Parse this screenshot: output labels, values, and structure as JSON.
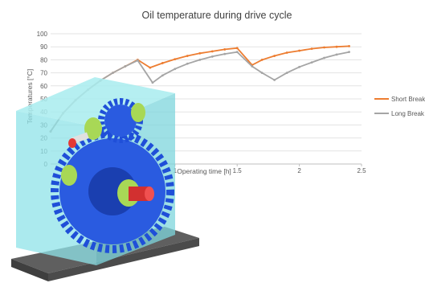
{
  "chart_data": {
    "type": "line",
    "title": "Oil temperature during drive cycle",
    "xlabel": "Operating time [h]",
    "ylabel": "Temperatures [°C]",
    "xlim": [
      0,
      2.5
    ],
    "ylim": [
      0,
      100
    ],
    "xticks": [
      "0.5",
      "1",
      "1.5",
      "2",
      "2.5"
    ],
    "yticks": [
      "0",
      "10",
      "20",
      "30",
      "40",
      "50",
      "60",
      "70",
      "80",
      "90",
      "100"
    ],
    "grid": true,
    "legend_position": "right",
    "series": [
      {
        "name": "Short Break",
        "color": "#ED7D31",
        "x": [
          0.0,
          0.1,
          0.2,
          0.3,
          0.4,
          0.5,
          0.6,
          0.7,
          0.8,
          0.9,
          1.0,
          1.1,
          1.2,
          1.3,
          1.4,
          1.5,
          1.62,
          1.7,
          1.8,
          1.9,
          2.0,
          2.1,
          2.2,
          2.3,
          2.4
        ],
        "y": [
          25,
          39,
          49,
          57,
          64,
          70,
          75,
          80,
          74,
          77.5,
          80.5,
          83,
          85,
          86.5,
          88,
          89,
          76,
          80,
          83,
          85.5,
          87,
          88.5,
          89.5,
          90,
          90.5
        ]
      },
      {
        "name": "Long Break",
        "color": "#A5A5A5",
        "x": [
          0.0,
          0.1,
          0.2,
          0.3,
          0.4,
          0.5,
          0.6,
          0.7,
          0.82,
          0.9,
          1.0,
          1.1,
          1.2,
          1.3,
          1.4,
          1.5,
          1.62,
          1.7,
          1.8,
          1.9,
          2.0,
          2.1,
          2.2,
          2.3,
          2.4
        ],
        "y": [
          25,
          39,
          49,
          57,
          64,
          70,
          75,
          79.5,
          62.5,
          68,
          73,
          77,
          80,
          82.5,
          84.5,
          86,
          75,
          70,
          64.5,
          70,
          74.5,
          78,
          81.5,
          84,
          86
        ]
      }
    ]
  },
  "colors": {
    "gearbox_housing": "#8FE3E8",
    "gear": "#1F4FD8",
    "bearing": "#A8D856",
    "shaft": "#E53935",
    "base_plate": "#6E6E6E"
  }
}
